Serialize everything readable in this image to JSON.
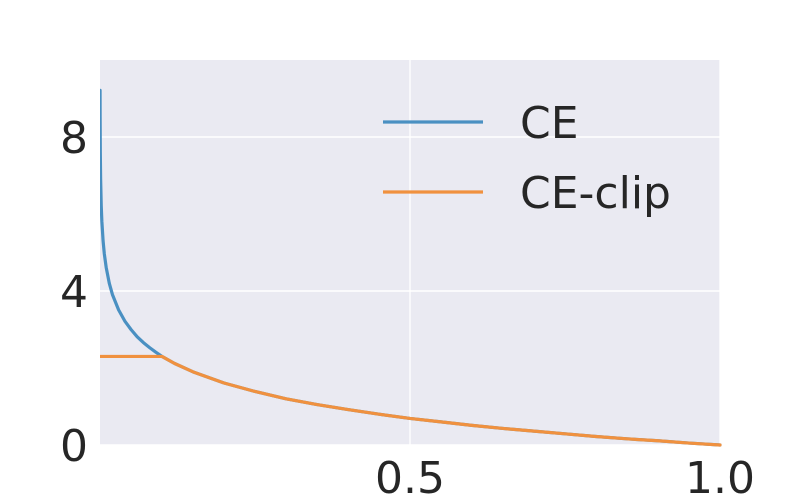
{
  "chart_data": {
    "type": "line",
    "title": "",
    "xlabel": "",
    "ylabel": "",
    "xlim": [
      0,
      1
    ],
    "ylim": [
      0,
      10
    ],
    "x_ticks": [
      0.5,
      1.0
    ],
    "x_tick_labels": [
      "0.5",
      "1.0"
    ],
    "y_ticks": [
      0,
      4,
      8
    ],
    "y_tick_labels": [
      "0",
      "4",
      "8"
    ],
    "grid": true,
    "background_color": "#EAEAF2",
    "grid_color": "#FFFFFF",
    "legend_position": "top-right",
    "series": [
      {
        "name": "CE",
        "color": "#4A90C2",
        "x": [
          0.0001,
          0.0002,
          0.0005,
          0.001,
          0.002,
          0.003,
          0.005,
          0.007,
          0.01,
          0.015,
          0.02,
          0.03,
          0.04,
          0.05,
          0.06,
          0.07,
          0.08,
          0.09,
          0.1,
          0.12,
          0.15,
          0.2,
          0.25,
          0.3,
          0.35,
          0.4,
          0.45,
          0.5,
          0.55,
          0.6,
          0.65,
          0.7,
          0.75,
          0.8,
          0.85,
          0.9,
          0.95,
          1.0
        ],
        "y": [
          9.21,
          8.52,
          7.6,
          6.91,
          6.21,
          5.81,
          5.3,
          4.96,
          4.61,
          4.2,
          3.91,
          3.51,
          3.22,
          3.0,
          2.81,
          2.66,
          2.53,
          2.41,
          2.3,
          2.12,
          1.9,
          1.61,
          1.39,
          1.2,
          1.05,
          0.92,
          0.8,
          0.69,
          0.6,
          0.51,
          0.43,
          0.36,
          0.29,
          0.22,
          0.16,
          0.11,
          0.05,
          0.0
        ]
      },
      {
        "name": "CE-clip",
        "color": "#F0913F",
        "x": [
          0.0001,
          0.1,
          0.12,
          0.15,
          0.2,
          0.25,
          0.3,
          0.35,
          0.4,
          0.45,
          0.5,
          0.55,
          0.6,
          0.65,
          0.7,
          0.75,
          0.8,
          0.85,
          0.9,
          0.95,
          1.0
        ],
        "y": [
          2.3,
          2.3,
          2.12,
          1.9,
          1.61,
          1.39,
          1.2,
          1.05,
          0.92,
          0.8,
          0.69,
          0.6,
          0.51,
          0.43,
          0.36,
          0.29,
          0.22,
          0.16,
          0.11,
          0.05,
          0.0
        ]
      }
    ]
  }
}
